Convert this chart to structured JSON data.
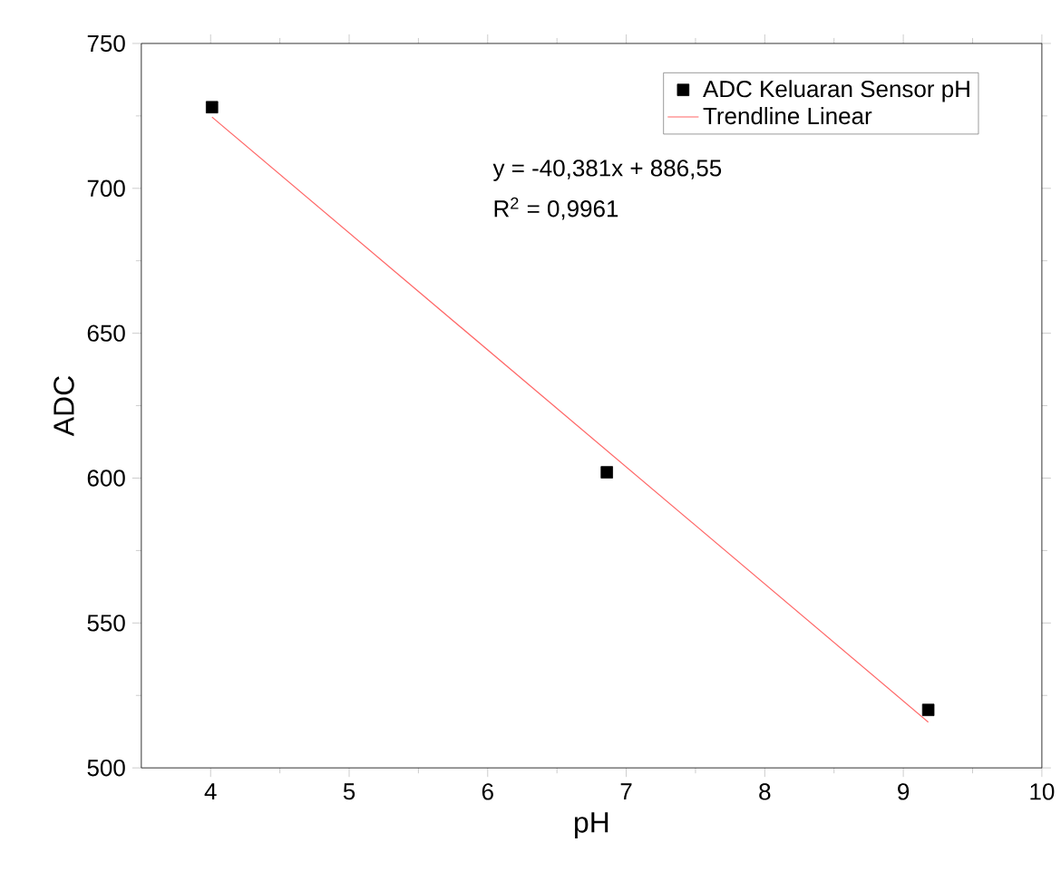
{
  "chart_data": {
    "type": "scatter",
    "xlabel": "pH",
    "ylabel": "ADC",
    "xlim": [
      3.5,
      10
    ],
    "xticks": [
      4,
      5,
      6,
      7,
      8,
      9,
      10
    ],
    "ylim": [
      500,
      750
    ],
    "yticks": [
      500,
      550,
      600,
      650,
      700,
      750
    ],
    "legend": "top right",
    "grid": false,
    "annotations": [
      "y = -40,381x + 886,55",
      "R$^{2}$ = 0,9961"
    ],
    "series": [
      {
        "name": "ADC Keluaran Sensor pH",
        "marker": "square",
        "color": "#000000",
        "x": [
          4.01,
          6.86,
          9.18
        ],
        "values": [
          728,
          602,
          520
        ]
      },
      {
        "name": "Trendline Linear",
        "type": "line",
        "marker": "none",
        "line_style": "solid",
        "color": "#ff6666",
        "x": [
          4.01,
          9.18
        ],
        "values": [
          724.6,
          515.8
        ]
      }
    ]
  }
}
